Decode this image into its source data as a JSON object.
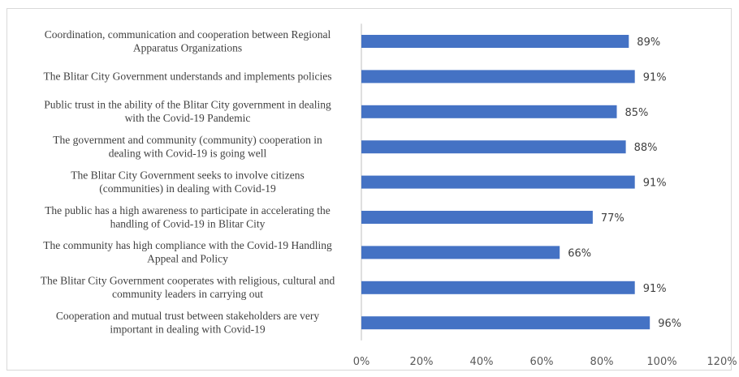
{
  "chart_data": {
    "type": "bar",
    "orientation": "horizontal",
    "title": "",
    "xlabel": "",
    "ylabel": "",
    "categories": [
      [
        "Coordination, communication and cooperation between Regional",
        "Apparatus Organizations"
      ],
      [
        "The Blitar City Government understands and implements policies"
      ],
      [
        "Public trust in the ability of the Blitar City government in dealing",
        "with the Covid-19 Pandemic"
      ],
      [
        "The government and community (community) cooperation in",
        "dealing with Covid-19 is going well"
      ],
      [
        "The Blitar City Government seeks to involve citizens",
        "(communities) in dealing with Covid-19"
      ],
      [
        "The public has a high awareness to participate in accelerating the",
        "handling of Covid-19 in Blitar City"
      ],
      [
        "The community has high compliance with the Covid-19 Handling",
        "Appeal and Policy"
      ],
      [
        "The Blitar City Government cooperates with religious, cultural and",
        "community leaders in carrying out"
      ],
      [
        "Cooperation and mutual trust between stakeholders are very",
        "important in dealing with Covid-19"
      ]
    ],
    "values": [
      89,
      91,
      85,
      88,
      91,
      77,
      66,
      91,
      96
    ],
    "value_labels": [
      "89%",
      "91%",
      "85%",
      "88%",
      "91%",
      "77%",
      "66%",
      "91%",
      "96%"
    ],
    "xlim": [
      0,
      120
    ],
    "x_ticks": [
      "0%",
      "20%",
      "40%",
      "60%",
      "80%",
      "100%",
      "120%"
    ],
    "grid": false,
    "legend": "none",
    "colors": {
      "bar": "#4472c4",
      "text": "#404040",
      "tick_text": "#595959",
      "axis": "#bfbfbf",
      "frame": "#d9d9d9"
    }
  }
}
